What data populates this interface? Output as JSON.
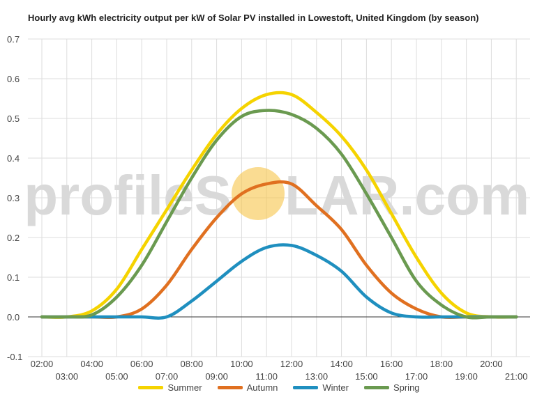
{
  "chart_data": {
    "type": "line",
    "title": "Hourly avg kWh electricity output per kW of Solar PV installed in Lowestoft, United Kingdom (by season)",
    "xlabel": "",
    "ylabel": "",
    "ylim": [
      -0.1,
      0.7
    ],
    "yticks": [
      "-0.1",
      "0.0",
      "0.1",
      "0.2",
      "0.3",
      "0.4",
      "0.5",
      "0.6",
      "0.7"
    ],
    "x": [
      "02:00",
      "03:00",
      "04:00",
      "05:00",
      "06:00",
      "07:00",
      "08:00",
      "09:00",
      "10:00",
      "11:00",
      "12:00",
      "13:00",
      "14:00",
      "15:00",
      "16:00",
      "17:00",
      "18:00",
      "19:00",
      "20:00",
      "21:00"
    ],
    "grid": true,
    "legend_position": "bottom",
    "series": [
      {
        "name": "Summer",
        "color": "#f5d300",
        "values": [
          0.0,
          0.0,
          0.015,
          0.07,
          0.17,
          0.27,
          0.37,
          0.46,
          0.525,
          0.56,
          0.56,
          0.515,
          0.455,
          0.37,
          0.26,
          0.15,
          0.06,
          0.01,
          0.0,
          0.0
        ]
      },
      {
        "name": "Autumn",
        "color": "#e07020",
        "values": [
          0.0,
          0.0,
          0.0,
          0.0,
          0.02,
          0.08,
          0.17,
          0.25,
          0.31,
          0.335,
          0.335,
          0.28,
          0.22,
          0.13,
          0.06,
          0.02,
          0.0,
          0.0,
          0.0,
          0.0
        ]
      },
      {
        "name": "Winter",
        "color": "#1f8fbf",
        "values": [
          0.0,
          0.0,
          0.0,
          0.0,
          0.0,
          0.0,
          0.04,
          0.09,
          0.14,
          0.175,
          0.18,
          0.155,
          0.115,
          0.05,
          0.01,
          0.0,
          0.0,
          0.0,
          0.0,
          0.0
        ]
      },
      {
        "name": "Spring",
        "color": "#6a9a50",
        "values": [
          0.0,
          0.0,
          0.005,
          0.05,
          0.13,
          0.24,
          0.35,
          0.445,
          0.505,
          0.52,
          0.51,
          0.475,
          0.41,
          0.31,
          0.2,
          0.09,
          0.03,
          0.0,
          0.0,
          0.0
        ]
      }
    ]
  },
  "watermark": {
    "left": "profileS",
    "right": "LAR.com",
    "sun_color": "#f6c54a"
  }
}
